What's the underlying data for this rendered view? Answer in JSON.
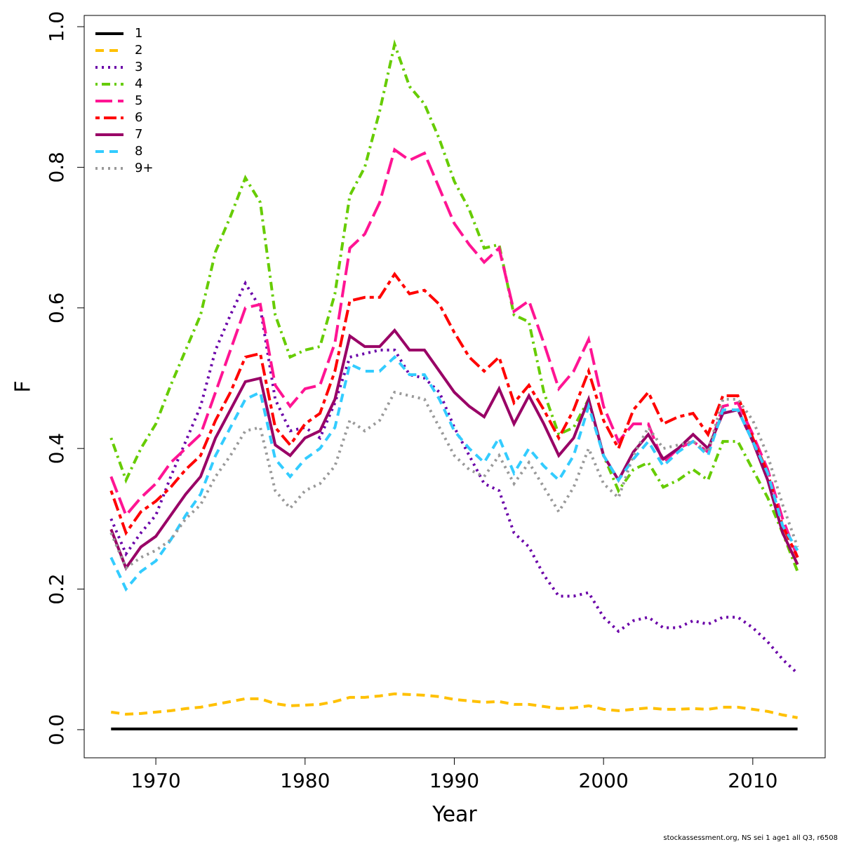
{
  "chart_data": {
    "type": "line",
    "x_label": "Year",
    "y_label": "F",
    "footnote": "stockassessment.org, NS sei 1 age1 all Q3, r6508",
    "x": [
      1967,
      1968,
      1969,
      1970,
      1971,
      1972,
      1973,
      1974,
      1975,
      1976,
      1977,
      1978,
      1979,
      1980,
      1981,
      1982,
      1983,
      1984,
      1985,
      1986,
      1987,
      1988,
      1989,
      1990,
      1991,
      1992,
      1993,
      1994,
      1995,
      1996,
      1997,
      1998,
      1999,
      2000,
      2001,
      2002,
      2003,
      2004,
      2005,
      2006,
      2007,
      2008,
      2009,
      2010,
      2011,
      2012,
      2013
    ],
    "xlim": [
      1965.2,
      2014.85
    ],
    "xticks": [
      1970,
      1980,
      1990,
      2000,
      2010
    ],
    "ylim": [
      -0.04,
      1.016
    ],
    "yticks": [
      {
        "value": 0,
        "label": "0.0"
      },
      0.2,
      0.4,
      0.6,
      0.8,
      {
        "value": 1,
        "label": "1.0"
      }
    ],
    "legend": "top-left",
    "series": [
      {
        "name": "1",
        "color": "#000000",
        "style": "solid",
        "values": [
          0.001,
          0.001,
          0.001,
          0.001,
          0.001,
          0.001,
          0.001,
          0.001,
          0.001,
          0.001,
          0.001,
          0.001,
          0.001,
          0.001,
          0.001,
          0.001,
          0.001,
          0.001,
          0.001,
          0.001,
          0.001,
          0.001,
          0.001,
          0.001,
          0.001,
          0.001,
          0.001,
          0.001,
          0.001,
          0.001,
          0.001,
          0.001,
          0.001,
          0.001,
          0.001,
          0.001,
          0.001,
          0.001,
          0.001,
          0.001,
          0.001,
          0.001,
          0.001,
          0.001,
          0.001,
          0.001,
          0.001
        ]
      },
      {
        "name": "2",
        "color": "#FFC000",
        "style": "dashed",
        "values": [
          0.025,
          0.022,
          0.023,
          0.025,
          0.027,
          0.03,
          0.032,
          0.036,
          0.04,
          0.044,
          0.044,
          0.037,
          0.034,
          0.035,
          0.036,
          0.04,
          0.046,
          0.046,
          0.048,
          0.051,
          0.05,
          0.049,
          0.047,
          0.043,
          0.041,
          0.039,
          0.04,
          0.036,
          0.036,
          0.033,
          0.03,
          0.031,
          0.034,
          0.029,
          0.027,
          0.029,
          0.031,
          0.029,
          0.029,
          0.03,
          0.029,
          0.032,
          0.032,
          0.029,
          0.026,
          0.021,
          0.017
        ]
      },
      {
        "name": "3",
        "color": "#6A00A8",
        "style": "dotted",
        "values": [
          0.3,
          0.25,
          0.28,
          0.305,
          0.36,
          0.41,
          0.46,
          0.54,
          0.59,
          0.635,
          0.6,
          0.47,
          0.425,
          0.43,
          0.415,
          0.465,
          0.53,
          0.535,
          0.54,
          0.54,
          0.505,
          0.5,
          0.48,
          0.43,
          0.39,
          0.35,
          0.34,
          0.28,
          0.26,
          0.22,
          0.19,
          0.19,
          0.195,
          0.16,
          0.14,
          0.155,
          0.16,
          0.145,
          0.145,
          0.155,
          0.15,
          0.16,
          0.16,
          0.145,
          0.125,
          0.1,
          0.08
        ]
      },
      {
        "name": "4",
        "color": "#66CC00",
        "style": "dotdash",
        "values": [
          0.415,
          0.355,
          0.4,
          0.435,
          0.49,
          0.54,
          0.59,
          0.68,
          0.73,
          0.785,
          0.75,
          0.59,
          0.53,
          0.54,
          0.545,
          0.62,
          0.76,
          0.8,
          0.88,
          0.975,
          0.915,
          0.89,
          0.84,
          0.78,
          0.74,
          0.685,
          0.69,
          0.59,
          0.58,
          0.48,
          0.42,
          0.43,
          0.47,
          0.39,
          0.34,
          0.37,
          0.38,
          0.345,
          0.355,
          0.37,
          0.355,
          0.41,
          0.41,
          0.37,
          0.33,
          0.28,
          0.225
        ]
      },
      {
        "name": "5",
        "color": "#FF1493",
        "style": "longdash",
        "values": [
          0.36,
          0.305,
          0.33,
          0.35,
          0.38,
          0.4,
          0.42,
          0.48,
          0.54,
          0.6,
          0.605,
          0.49,
          0.46,
          0.485,
          0.49,
          0.55,
          0.685,
          0.705,
          0.75,
          0.825,
          0.81,
          0.82,
          0.77,
          0.72,
          0.69,
          0.665,
          0.685,
          0.595,
          0.61,
          0.55,
          0.485,
          0.51,
          0.555,
          0.46,
          0.41,
          0.435,
          0.435,
          0.38,
          0.4,
          0.41,
          0.395,
          0.46,
          0.465,
          0.42,
          0.37,
          0.3,
          0.245
        ]
      },
      {
        "name": "6",
        "color": "#FF0000",
        "style": "twodash",
        "values": [
          0.34,
          0.28,
          0.31,
          0.325,
          0.345,
          0.37,
          0.39,
          0.44,
          0.48,
          0.53,
          0.535,
          0.43,
          0.405,
          0.435,
          0.45,
          0.51,
          0.61,
          0.615,
          0.615,
          0.648,
          0.62,
          0.625,
          0.605,
          0.565,
          0.53,
          0.51,
          0.53,
          0.465,
          0.49,
          0.455,
          0.415,
          0.455,
          0.51,
          0.44,
          0.4,
          0.455,
          0.48,
          0.435,
          0.445,
          0.45,
          0.42,
          0.475,
          0.475,
          0.415,
          0.365,
          0.29,
          0.245
        ]
      },
      {
        "name": "7",
        "color": "#990066",
        "style": "solid",
        "values": [
          0.285,
          0.23,
          0.26,
          0.275,
          0.305,
          0.335,
          0.36,
          0.415,
          0.455,
          0.495,
          0.5,
          0.405,
          0.39,
          0.415,
          0.425,
          0.47,
          0.56,
          0.545,
          0.545,
          0.568,
          0.54,
          0.54,
          0.51,
          0.48,
          0.46,
          0.445,
          0.485,
          0.435,
          0.475,
          0.435,
          0.39,
          0.415,
          0.47,
          0.39,
          0.355,
          0.395,
          0.42,
          0.385,
          0.4,
          0.42,
          0.4,
          0.45,
          0.455,
          0.41,
          0.355,
          0.28,
          0.235
        ]
      },
      {
        "name": "8",
        "color": "#33CCFF",
        "style": "dashed",
        "values": [
          0.245,
          0.2,
          0.225,
          0.24,
          0.27,
          0.305,
          0.335,
          0.39,
          0.43,
          0.47,
          0.48,
          0.385,
          0.36,
          0.385,
          0.4,
          0.43,
          0.52,
          0.51,
          0.51,
          0.53,
          0.505,
          0.505,
          0.47,
          0.425,
          0.4,
          0.38,
          0.415,
          0.365,
          0.4,
          0.375,
          0.355,
          0.39,
          0.46,
          0.39,
          0.355,
          0.385,
          0.41,
          0.375,
          0.395,
          0.41,
          0.39,
          0.455,
          0.455,
          0.41,
          0.365,
          0.29,
          0.255
        ]
      },
      {
        "name": "9+",
        "color": "#999999",
        "style": "dotted",
        "values": [
          0.28,
          0.23,
          0.245,
          0.255,
          0.27,
          0.3,
          0.32,
          0.36,
          0.39,
          0.425,
          0.43,
          0.34,
          0.315,
          0.34,
          0.35,
          0.375,
          0.44,
          0.425,
          0.44,
          0.48,
          0.475,
          0.47,
          0.43,
          0.39,
          0.37,
          0.36,
          0.39,
          0.35,
          0.38,
          0.345,
          0.31,
          0.345,
          0.4,
          0.35,
          0.33,
          0.39,
          0.43,
          0.4,
          0.405,
          0.41,
          0.395,
          0.47,
          0.47,
          0.44,
          0.39,
          0.32,
          0.26
        ]
      }
    ]
  }
}
